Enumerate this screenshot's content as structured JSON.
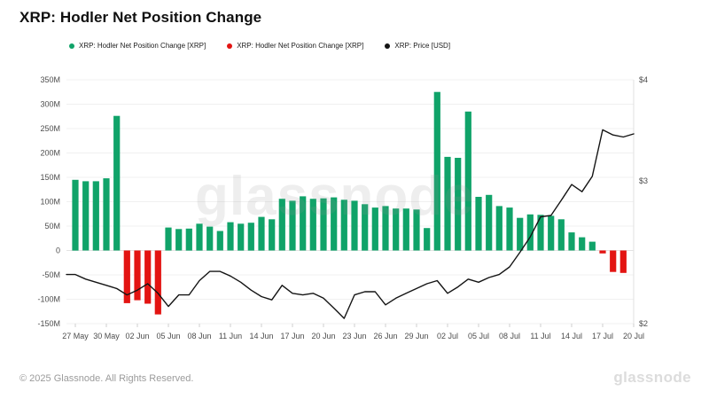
{
  "header": {
    "title": "XRP: Hodler Net Position Change"
  },
  "legend": [
    {
      "label": "XRP: Hodler Net Position Change [XRP]",
      "color": "#10a369",
      "marker": "circle-icon"
    },
    {
      "label": "XRP: Hodler Net Position Change [XRP]",
      "color": "#e31412",
      "marker": "circle-icon"
    },
    {
      "label": "XRP: Price [USD]",
      "color": "#141414",
      "marker": "circle-icon"
    }
  ],
  "watermark": "glassnode",
  "footer": {
    "copyright": "© 2025 Glassnode. All Rights Reserved.",
    "brand": "glassnode"
  },
  "colors": {
    "positive_bar": "#10a369",
    "negative_bar": "#e31412",
    "price_line": "#141414",
    "gridline": "#f0f0f0",
    "zero_line": "#e3e3e3",
    "axis_line": "#e0e0e0",
    "tick_mark": "#cfcfcf",
    "axis_text": "#4d4d4d"
  },
  "chart_data": {
    "type": "bar",
    "title": "XRP: Hodler Net Position Change",
    "grid": true,
    "legend_position": "top-left",
    "x": [
      "27 May",
      "28 May",
      "29 May",
      "30 May",
      "31 May",
      "01 Jun",
      "02 Jun",
      "03 Jun",
      "04 Jun",
      "05 Jun",
      "06 Jun",
      "07 Jun",
      "08 Jun",
      "09 Jun",
      "10 Jun",
      "11 Jun",
      "12 Jun",
      "13 Jun",
      "14 Jun",
      "15 Jun",
      "16 Jun",
      "17 Jun",
      "18 Jun",
      "19 Jun",
      "20 Jun",
      "21 Jun",
      "22 Jun",
      "23 Jun",
      "24 Jun",
      "25 Jun",
      "26 Jun",
      "27 Jun",
      "28 Jun",
      "29 Jun",
      "30 Jun",
      "01 Jul",
      "02 Jul",
      "03 Jul",
      "04 Jul",
      "05 Jul",
      "06 Jul",
      "07 Jul",
      "08 Jul",
      "09 Jul",
      "10 Jul",
      "11 Jul",
      "12 Jul",
      "13 Jul",
      "14 Jul",
      "15 Jul",
      "16 Jul",
      "17 Jul",
      "18 Jul",
      "19 Jul",
      "20 Jul"
    ],
    "x_tick_labels": [
      "27 May",
      "30 May",
      "02 Jun",
      "05 Jun",
      "08 Jun",
      "11 Jun",
      "14 Jun",
      "17 Jun",
      "20 Jun",
      "23 Jun",
      "26 Jun",
      "29 Jun",
      "02 Jul",
      "05 Jul",
      "08 Jul",
      "11 Jul",
      "14 Jul",
      "17 Jul",
      "20 Jul"
    ],
    "series": [
      {
        "name": "XRP: Hodler Net Position Change [XRP]",
        "type": "bar",
        "yaxis": "left",
        "unit": "XRP (millions)",
        "color_positive": "#10a369",
        "color_negative": "#e31412",
        "values": [
          145,
          142,
          142,
          148,
          276,
          -108,
          -102,
          -109,
          -131,
          47,
          44,
          45,
          55,
          49,
          40,
          58,
          55,
          57,
          69,
          64,
          106,
          102,
          111,
          106,
          107,
          109,
          104,
          102,
          95,
          88,
          91,
          86,
          86,
          84,
          46,
          325,
          192,
          190,
          285,
          110,
          114,
          91,
          88,
          67,
          74,
          73,
          71,
          64,
          37,
          27,
          18,
          -6,
          -44,
          -46,
          null
        ]
      },
      {
        "name": "XRP: Price [USD]",
        "type": "line",
        "yaxis": "right",
        "unit": "USD",
        "color": "#141414",
        "values": [
          2.3,
          2.27,
          2.25,
          2.23,
          2.21,
          2.17,
          2.2,
          2.24,
          2.18,
          2.1,
          2.17,
          2.17,
          2.26,
          2.32,
          2.32,
          2.29,
          2.25,
          2.2,
          2.16,
          2.14,
          2.23,
          2.18,
          2.17,
          2.18,
          2.15,
          2.09,
          2.03,
          2.17,
          2.19,
          2.19,
          2.11,
          2.15,
          2.18,
          2.21,
          2.24,
          2.26,
          2.18,
          2.22,
          2.27,
          2.25,
          2.28,
          2.3,
          2.35,
          2.45,
          2.56,
          2.71,
          2.72,
          2.84,
          2.97,
          2.91,
          3.04,
          3.47,
          3.42,
          3.4,
          3.43
        ]
      }
    ],
    "left_axis": {
      "ticks": [
        350,
        300,
        250,
        200,
        150,
        100,
        50,
        0,
        -50,
        -100,
        -150
      ],
      "tick_labels": [
        "350M",
        "300M",
        "250M",
        "200M",
        "150M",
        "100M",
        "50M",
        "0",
        "-50M",
        "-100M",
        "-150M"
      ],
      "range_millions": [
        -150,
        350
      ],
      "scale": "linear"
    },
    "right_axis": {
      "ticks": [
        4,
        3,
        2
      ],
      "tick_labels": [
        "$4",
        "$3",
        "$2"
      ],
      "range_usd": [
        2,
        4
      ],
      "scale": "log"
    }
  }
}
